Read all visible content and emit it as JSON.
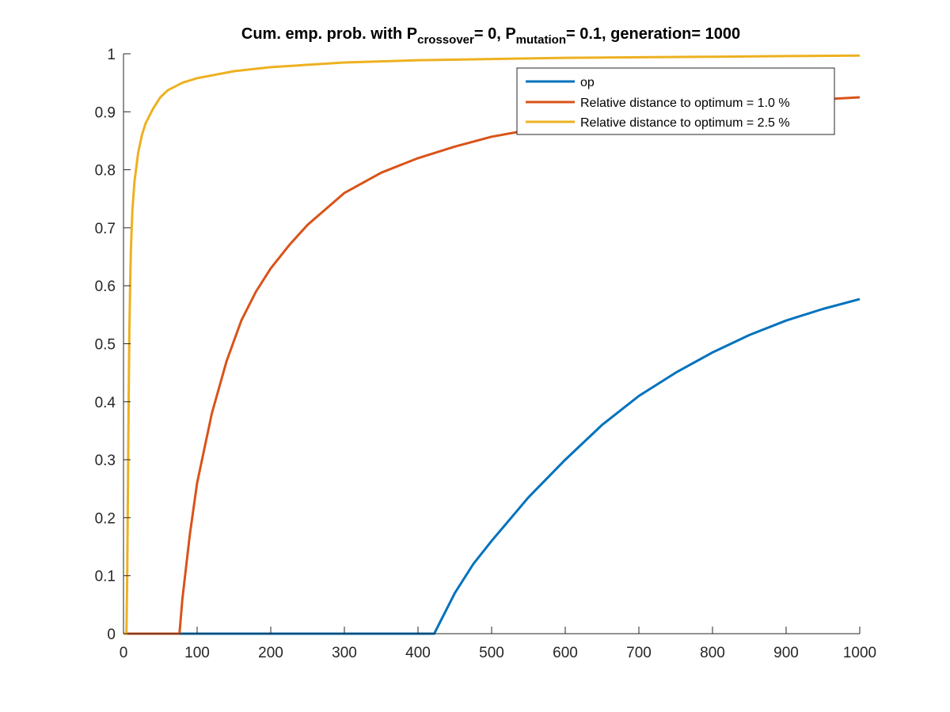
{
  "chart_data": {
    "type": "line",
    "title": {
      "prefix": "Cum. emp. prob. with P",
      "sub1": "crossover",
      "mid": "= 0, P",
      "sub2": "mutation",
      "suffix": "= 0.1, generation= 1000"
    },
    "xlabel": "",
    "ylabel": "",
    "xlim": [
      0,
      1000
    ],
    "ylim": [
      0,
      1
    ],
    "xticks": [
      0,
      100,
      200,
      300,
      400,
      500,
      600,
      700,
      800,
      900,
      1000
    ],
    "yticks": [
      0,
      0.1,
      0.2,
      0.3,
      0.4,
      0.5,
      0.6,
      0.7,
      0.8,
      0.9,
      1
    ],
    "grid": false,
    "legend_position": "top-right",
    "series": [
      {
        "name": "op",
        "color": "#0072BD",
        "x": [
          0,
          422,
          430,
          450,
          475,
          500,
          550,
          600,
          650,
          700,
          750,
          800,
          850,
          900,
          950,
          1000
        ],
        "y": [
          0,
          0,
          0.02,
          0.07,
          0.12,
          0.16,
          0.235,
          0.3,
          0.36,
          0.41,
          0.45,
          0.485,
          0.515,
          0.54,
          0.56,
          0.577
        ]
      },
      {
        "name": "Relative distance to optimum = 1.0 %",
        "color": "#D95319",
        "x": [
          0,
          76,
          80,
          90,
          100,
          120,
          140,
          160,
          180,
          200,
          225,
          250,
          300,
          350,
          400,
          450,
          500,
          600,
          700,
          800,
          900,
          1000
        ],
        "y": [
          0,
          0,
          0.06,
          0.17,
          0.26,
          0.38,
          0.47,
          0.54,
          0.59,
          0.63,
          0.67,
          0.705,
          0.76,
          0.795,
          0.82,
          0.84,
          0.857,
          0.88,
          0.898,
          0.91,
          0.918,
          0.925
        ]
      },
      {
        "name": "Relative distance to optimum = 2.5 %",
        "color": "#EDB120",
        "x": [
          0,
          4,
          5,
          6,
          7,
          8,
          9,
          10,
          12,
          15,
          20,
          25,
          30,
          40,
          50,
          60,
          80,
          100,
          150,
          200,
          300,
          400,
          500,
          600,
          700,
          800,
          900,
          1000
        ],
        "y": [
          0,
          0,
          0.1,
          0.25,
          0.4,
          0.52,
          0.6,
          0.66,
          0.73,
          0.78,
          0.83,
          0.86,
          0.88,
          0.905,
          0.925,
          0.937,
          0.95,
          0.958,
          0.97,
          0.977,
          0.985,
          0.989,
          0.991,
          0.993,
          0.994,
          0.995,
          0.996,
          0.997
        ]
      }
    ]
  }
}
